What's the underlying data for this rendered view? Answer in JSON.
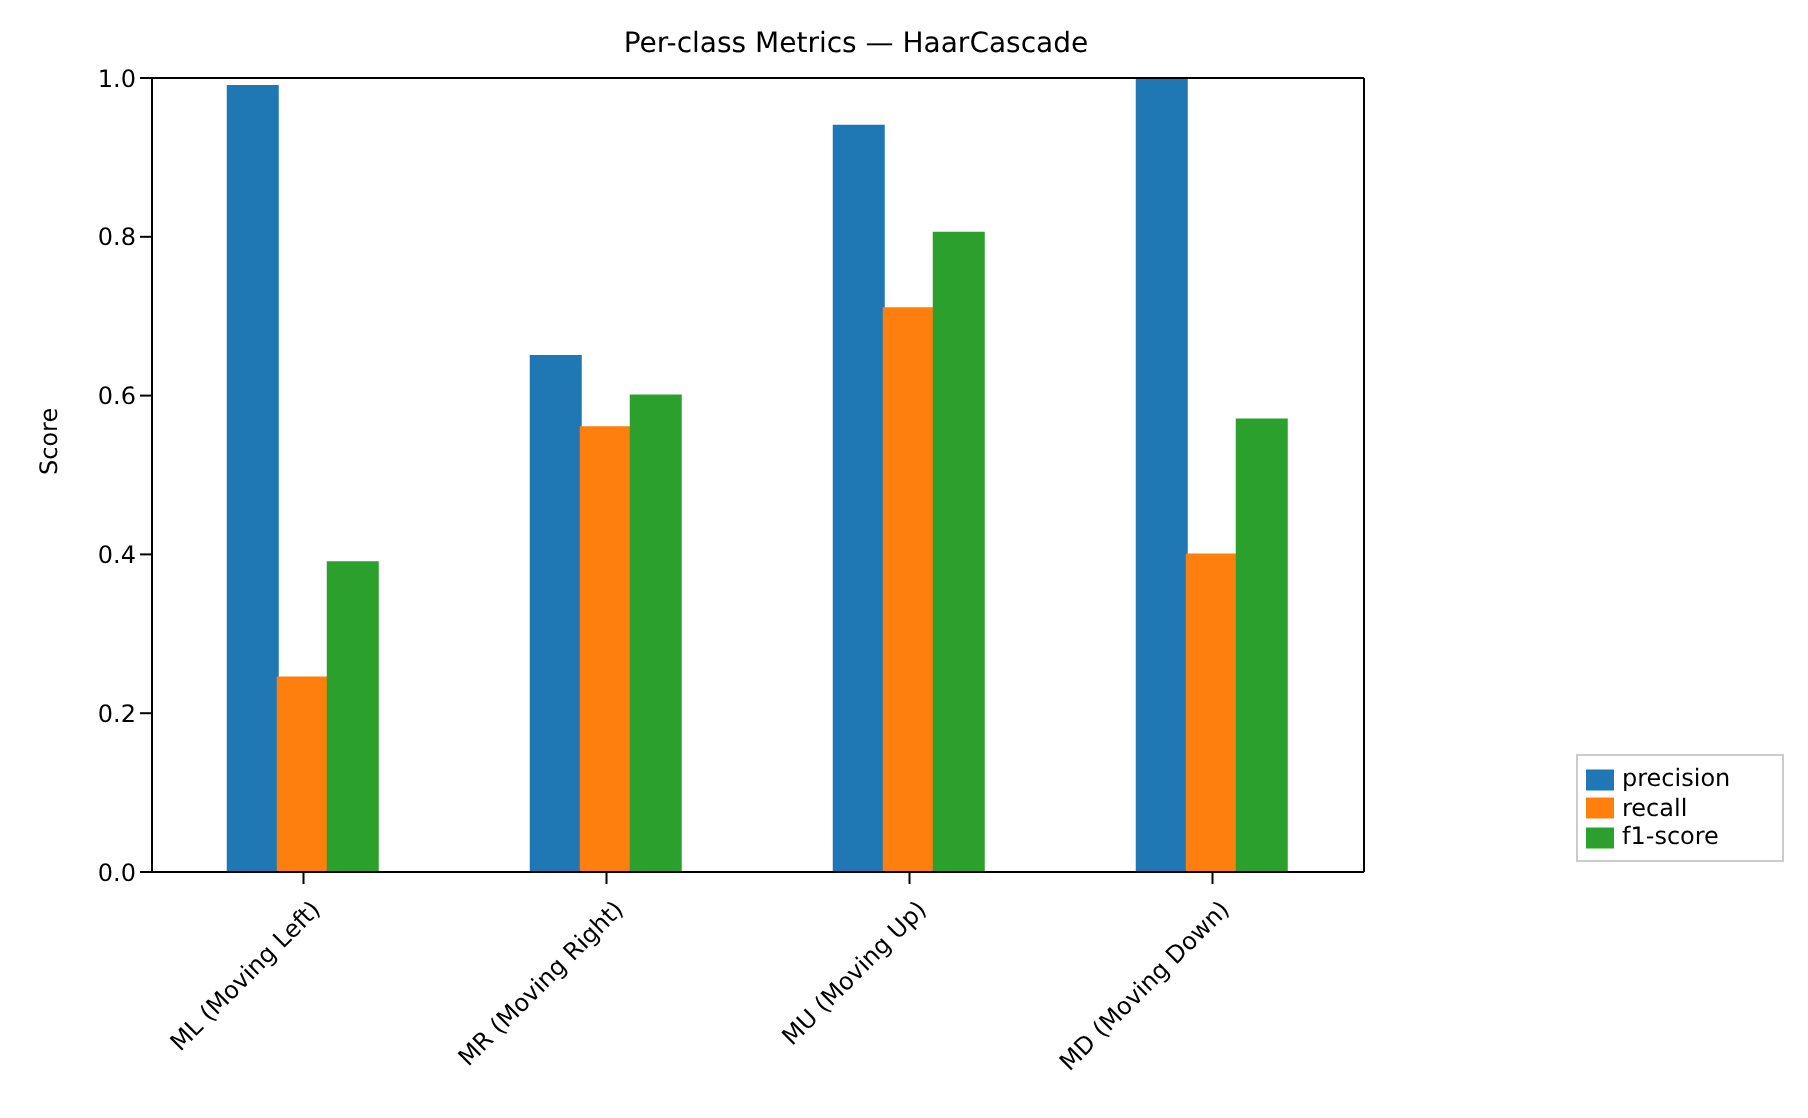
{
  "chart_data": {
    "type": "bar",
    "title": "Per-class Metrics — HaarCascade",
    "ylabel": "Score",
    "categories": [
      "ML (Moving Left)",
      "MR (Moving Right)",
      "MU (Moving Up)",
      "MD (Moving Down)"
    ],
    "series": [
      {
        "name": "precision",
        "color": "#1f77b4",
        "values": [
          0.99,
          0.65,
          0.94,
          1.0
        ]
      },
      {
        "name": "recall",
        "color": "#ff7f0e",
        "values": [
          0.245,
          0.56,
          0.71,
          0.4
        ]
      },
      {
        "name": "f1-score",
        "color": "#2ca02c",
        "values": [
          0.39,
          0.6,
          0.805,
          0.57
        ]
      }
    ],
    "ylim": [
      0,
      1
    ],
    "yticks": [
      {
        "value": 0,
        "label": "0.0"
      },
      {
        "value": 0.2,
        "label": "0.2"
      },
      {
        "value": 0.4,
        "label": "0.4"
      },
      {
        "value": 0.6,
        "label": "0.6"
      },
      {
        "value": 0.8,
        "label": "0.8"
      },
      {
        "value": 1,
        "label": "1.0"
      }
    ],
    "legend": "bottom right"
  }
}
